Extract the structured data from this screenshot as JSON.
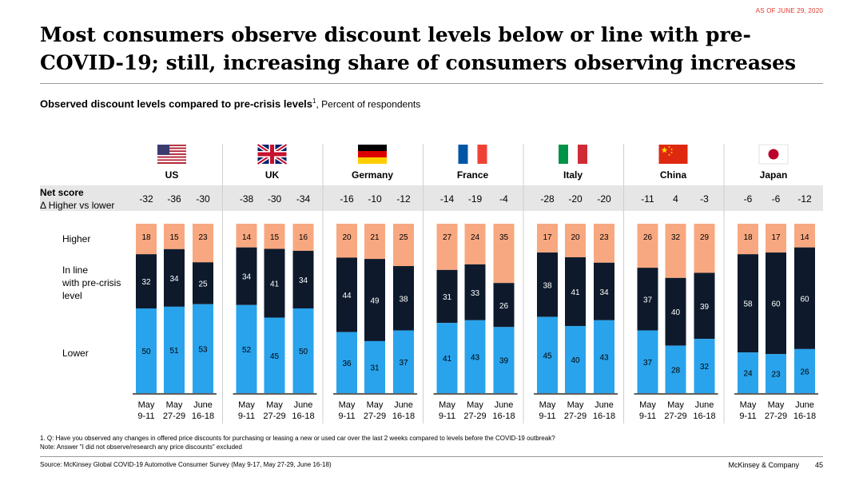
{
  "as_of": "AS OF JUNE 29, 2020",
  "title": "Most consumers observe discount levels below or line with pre-COVID-19; still, increasing share of consumers observing increases",
  "subtitle_bold": "Observed discount levels compared to pre-crisis levels",
  "subtitle_sup": "1",
  "subtitle_rest": ", Percent of respondents",
  "net_score_label": "Net score",
  "net_score_sublabel": "Δ Higher vs lower",
  "row_labels": {
    "higher": "Higher",
    "inline": [
      "In line",
      "with pre-crisis",
      "level"
    ],
    "lower": "Lower"
  },
  "colors": {
    "higher": "#f8a880",
    "inline": "#0e1a2c",
    "lower": "#29a3ec",
    "net_band": "#e6e6e6"
  },
  "chart_data": {
    "type": "bar",
    "stacked": true,
    "normalized_percent": true,
    "categories": [
      "May 9-11",
      "May 27-29",
      "June 16-18"
    ],
    "category_lines": [
      [
        "May",
        "9-11"
      ],
      [
        "May",
        "27-29"
      ],
      [
        "June",
        "16-18"
      ]
    ],
    "series_order": [
      "lower",
      "inline",
      "higher"
    ],
    "groups": [
      {
        "country": "US",
        "flag": "us-flag-icon",
        "net": [
          -32,
          -36,
          -30
        ],
        "higher": [
          18,
          15,
          23
        ],
        "inline": [
          32,
          34,
          25
        ],
        "lower": [
          50,
          51,
          53
        ]
      },
      {
        "country": "UK",
        "flag": "uk-flag-icon",
        "net": [
          -38,
          -30,
          -34
        ],
        "higher": [
          14,
          15,
          16
        ],
        "inline": [
          34,
          41,
          34
        ],
        "lower": [
          52,
          45,
          50
        ]
      },
      {
        "country": "Germany",
        "flag": "germany-flag-icon",
        "net": [
          -16,
          -10,
          -12
        ],
        "higher": [
          20,
          21,
          25
        ],
        "inline": [
          44,
          49,
          38
        ],
        "lower": [
          36,
          31,
          37
        ]
      },
      {
        "country": "France",
        "flag": "france-flag-icon",
        "net": [
          -14,
          -19,
          -4
        ],
        "higher": [
          27,
          24,
          35
        ],
        "inline": [
          31,
          33,
          26
        ],
        "lower": [
          41,
          43,
          39
        ]
      },
      {
        "country": "Italy",
        "flag": "italy-flag-icon",
        "net": [
          -28,
          -20,
          -20
        ],
        "higher": [
          17,
          20,
          23
        ],
        "inline": [
          38,
          41,
          34
        ],
        "lower": [
          45,
          40,
          43
        ]
      },
      {
        "country": "China",
        "flag": "china-flag-icon",
        "net": [
          -11,
          4,
          -3
        ],
        "higher": [
          26,
          32,
          29
        ],
        "inline": [
          37,
          40,
          39
        ],
        "lower": [
          37,
          28,
          32
        ]
      },
      {
        "country": "Japan",
        "flag": "japan-flag-icon",
        "net": [
          -6,
          -6,
          -12
        ],
        "higher": [
          18,
          17,
          14
        ],
        "inline": [
          58,
          60,
          60
        ],
        "lower": [
          24,
          23,
          26
        ]
      }
    ]
  },
  "footnote_1": "1.    Q: Have you observed any changes in offered price discounts for purchasing or leasing a new or used car over the last 2 weeks compared to levels before the COVID-19 outbreak?",
  "footnote_2": "Note: Answer \"I did not observe/research any price discounts\" excluded",
  "source": "Source: McKinsey Global COVID-19 Automotive Consumer Survey (May 9-17, May 27-29, June 16-18)",
  "brand": "McKinsey & Company",
  "page_number": "45"
}
